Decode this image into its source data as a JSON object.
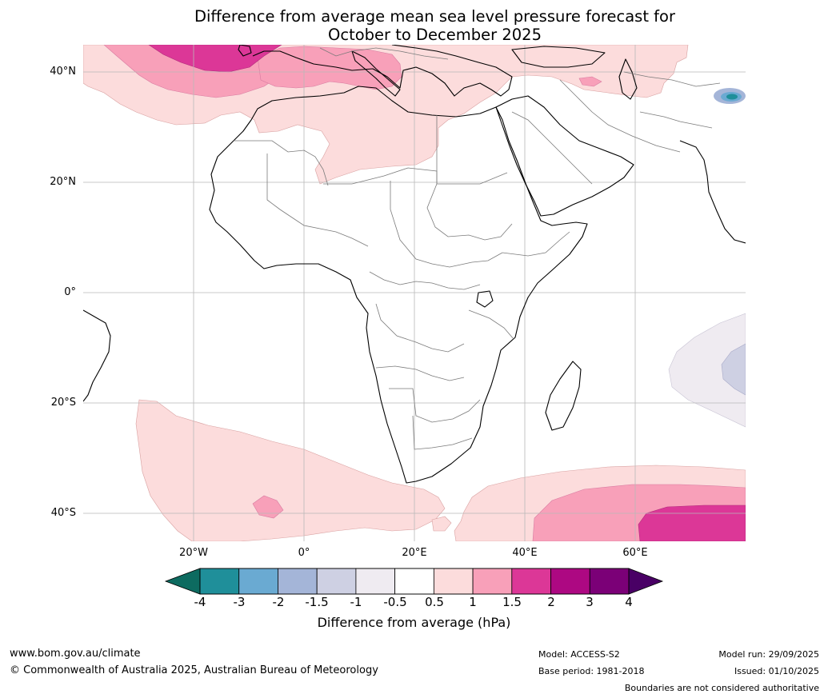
{
  "title": {
    "line1": "Difference from average mean sea level pressure forecast for",
    "line2": "October to December 2025"
  },
  "map": {
    "lat_labels": [
      "40°N",
      "20°N",
      "0°",
      "20°S",
      "40°S"
    ],
    "lon_labels": [
      "20°W",
      "0°",
      "20°E",
      "40°E",
      "60°E"
    ],
    "extent": {
      "lon_min": -40,
      "lon_max": 80,
      "lat_min": -45,
      "lat_max": 45
    }
  },
  "colorbar": {
    "ticks": [
      "-4",
      "-3",
      "-2",
      "-1.5",
      "-1",
      "-0.5",
      "0.5",
      "1",
      "1.5",
      "2",
      "3",
      "4"
    ],
    "colors": {
      "below_-4": "#0d6b60",
      "-4_-3": "#1f8f9a",
      "-3_-2": "#6aaad2",
      "-2_-1.5": "#a4b5d8",
      "-1.5_-1": "#ced0e3",
      "-1_-0.5": "#efebf1",
      "-0.5_0.5": "#ffffff",
      "0.5_1": "#fcdcdc",
      "1_1.5": "#f8a0b9",
      "1.5_2": "#dc3797",
      "2_3": "#ad0882",
      "3_4": "#7b0077",
      "above_4": "#490065"
    },
    "label": "Difference from average (hPa)"
  },
  "footer": {
    "website": "www.bom.gov.au/climate",
    "copyright": "© Commonwealth of Australia 2025, Australian Bureau of Meteorology",
    "model": "Model: ACCESS-S2",
    "base_period": "Base period: 1981-2018",
    "model_run": "Model run: 29/09/2025",
    "issued": "Issued: 01/10/2025",
    "disclaimer": "Boundaries are not considered authoritative"
  }
}
